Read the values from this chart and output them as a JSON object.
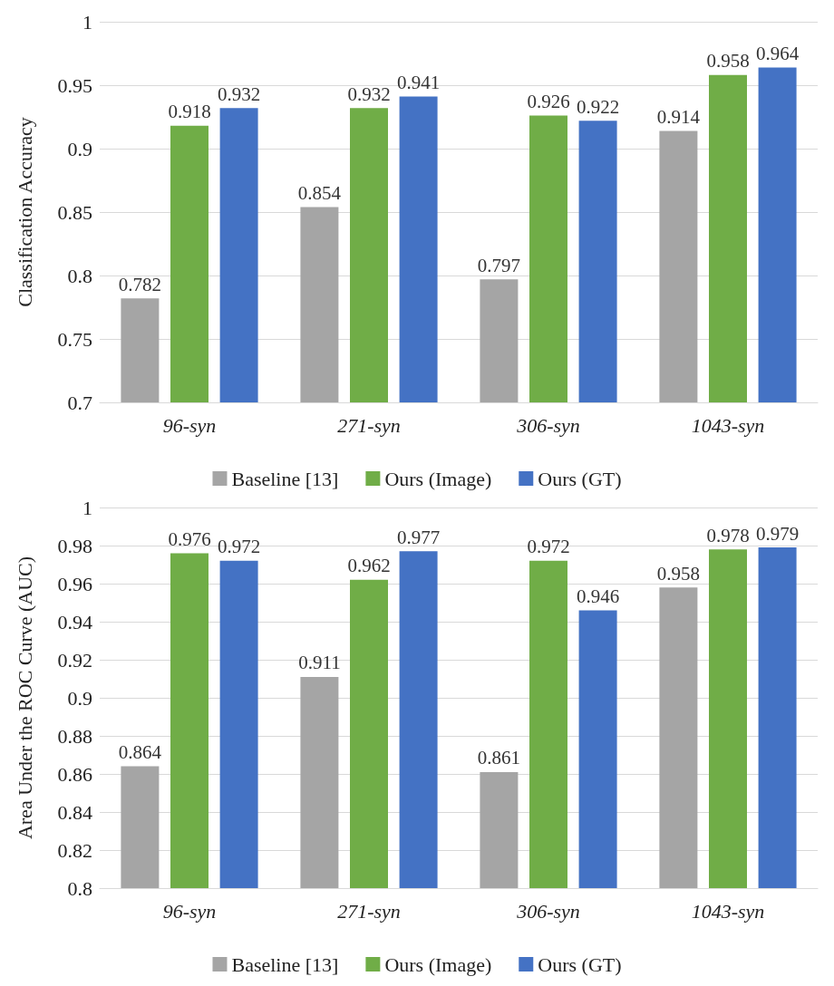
{
  "chart_data": [
    {
      "type": "bar",
      "ylabel": "Classification Accuracy",
      "categories": [
        "96-syn",
        "271-syn",
        "306-syn",
        "1043-syn"
      ],
      "series": [
        {
          "name": "Baseline [13]",
          "color": "#a5a5a5",
          "values": [
            0.782,
            0.854,
            0.797,
            0.914
          ]
        },
        {
          "name": "Ours (Image)",
          "color": "#70ad47",
          "values": [
            0.918,
            0.932,
            0.926,
            0.958
          ]
        },
        {
          "name": "Ours (GT)",
          "color": "#4472c4",
          "values": [
            0.932,
            0.941,
            0.922,
            0.964
          ]
        }
      ],
      "ylim": [
        0.7,
        1
      ],
      "yticks": [
        0.7,
        0.75,
        0.8,
        0.85,
        0.9,
        0.95,
        1
      ],
      "grid": "y",
      "legend": "bottom",
      "data_labels": true
    },
    {
      "type": "bar",
      "ylabel": "Area Under the ROC Curve (AUC)",
      "categories": [
        "96-syn",
        "271-syn",
        "306-syn",
        "1043-syn"
      ],
      "series": [
        {
          "name": "Baseline [13]",
          "color": "#a5a5a5",
          "values": [
            0.864,
            0.911,
            0.861,
            0.958
          ]
        },
        {
          "name": "Ours (Image)",
          "color": "#70ad47",
          "values": [
            0.976,
            0.962,
            0.972,
            0.978
          ]
        },
        {
          "name": "Ours (GT)",
          "color": "#4472c4",
          "values": [
            0.972,
            0.977,
            0.946,
            0.979
          ]
        }
      ],
      "ylim": [
        0.8,
        1
      ],
      "yticks": [
        0.8,
        0.82,
        0.84,
        0.86,
        0.88,
        0.9,
        0.92,
        0.94,
        0.96,
        0.98,
        1
      ],
      "grid": "y",
      "legend": "bottom",
      "data_labels": true
    }
  ]
}
